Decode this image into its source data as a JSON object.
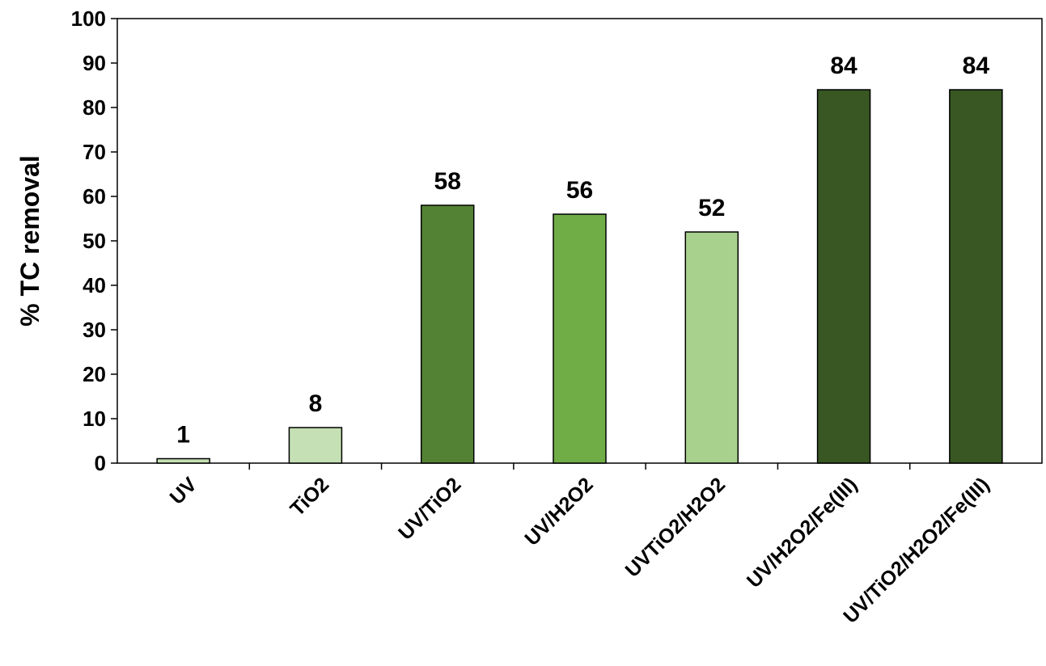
{
  "chart_data": {
    "type": "bar",
    "title": "",
    "xlabel": "",
    "ylabel": "% TC removal",
    "categories": [
      "UV",
      "TiO2",
      "UV/TiO2",
      "UV/H2O2",
      "UVTiO2/H2O2",
      "UV/H2O2/Fe(III)",
      "UV/TiO2/H2O2/Fe(III)"
    ],
    "values": [
      1,
      8,
      58,
      56,
      52,
      84,
      84
    ],
    "data_labels": [
      "1",
      "8",
      "58",
      "56",
      "52",
      "84",
      "84"
    ],
    "bar_colors": [
      "#c5e0b4",
      "#c5e0b4",
      "#548235",
      "#70ad47",
      "#a9d18e",
      "#385723",
      "#385723"
    ],
    "ylim": [
      0,
      100
    ],
    "yticks": [
      0,
      10,
      20,
      30,
      40,
      50,
      60,
      70,
      80,
      90,
      100
    ],
    "grid": false,
    "legend": "none"
  }
}
